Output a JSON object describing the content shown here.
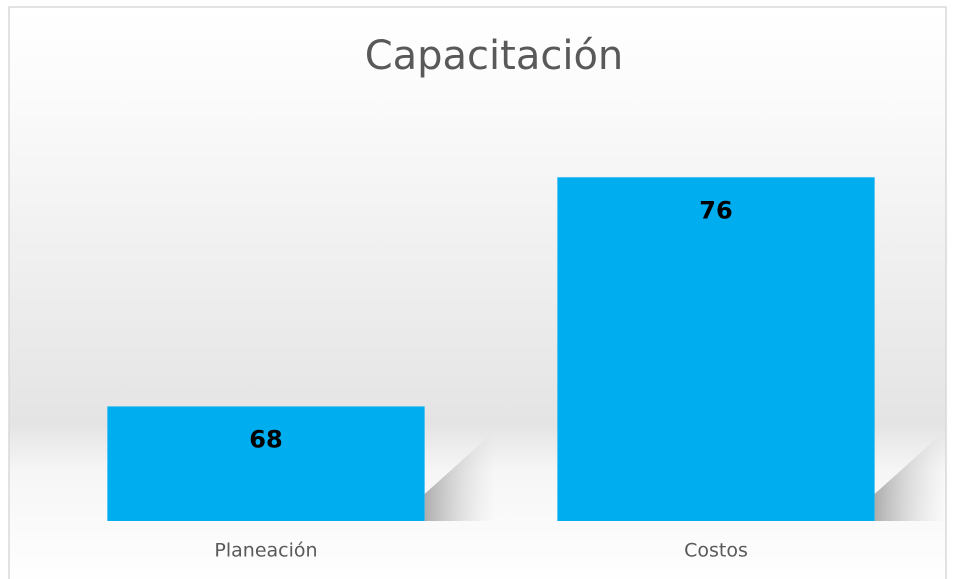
{
  "chart_data": {
    "type": "bar",
    "title": "Capacitación",
    "categories": [
      "Planeación",
      "Costos"
    ],
    "values": [
      68,
      76
    ],
    "color": "#00aeef",
    "ylim": [
      64,
      78
    ]
  }
}
